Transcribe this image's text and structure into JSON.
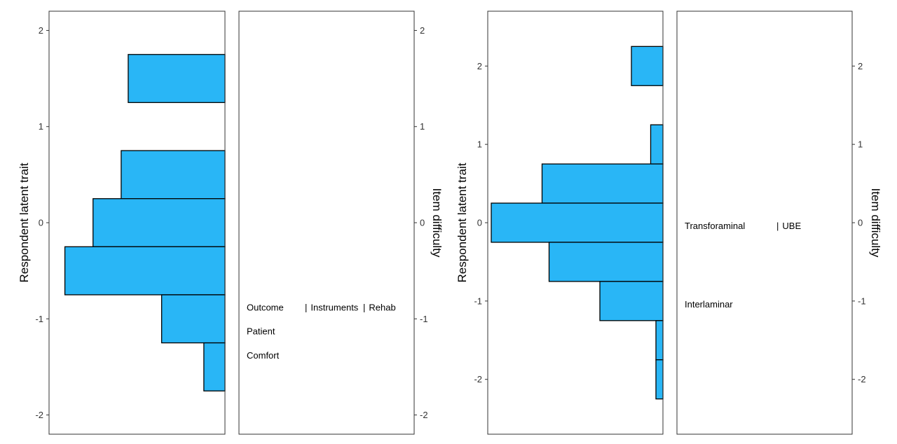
{
  "chart_data": [
    {
      "type": "bar",
      "orientation": "horizontal",
      "description_type": "wright-map",
      "ylabel_left": "Respondent latent trait",
      "ylabel_right": "Item difficulty",
      "ylim": [
        -2.2,
        2.2
      ],
      "yticks": [
        -2,
        -1,
        0,
        1,
        2
      ],
      "ytick_labels": [
        "-2",
        "-1",
        "0",
        "1",
        "2"
      ],
      "bar_color": "#29b6f6",
      "histogram_bins": [
        {
          "lower": 1.25,
          "upper": 1.75,
          "count": 0.55
        },
        {
          "lower": 0.25,
          "upper": 0.75,
          "count": 0.59
        },
        {
          "lower": -0.25,
          "upper": 0.25,
          "count": 0.75
        },
        {
          "lower": -0.75,
          "upper": -0.25,
          "count": 0.91
        },
        {
          "lower": -1.25,
          "upper": -0.75,
          "count": 0.36
        },
        {
          "lower": -1.75,
          "upper": -1.25,
          "count": 0.12
        }
      ],
      "items": [
        {
          "label": "Outcome",
          "difficulty": -0.88,
          "column": 0
        },
        {
          "label": "Patient",
          "difficulty": -1.13,
          "column": 0
        },
        {
          "label": "Comfort",
          "difficulty": -1.38,
          "column": 0
        },
        {
          "label": "Instruments",
          "difficulty": -0.88,
          "column": 1,
          "marker": "|"
        },
        {
          "label": "Rehab",
          "difficulty": -0.88,
          "column": 2,
          "marker": "|"
        }
      ]
    },
    {
      "type": "bar",
      "orientation": "horizontal",
      "description_type": "wright-map",
      "ylabel_left": "Respondent latent trait",
      "ylabel_right": "Item difficulty",
      "ylim": [
        -2.7,
        2.7
      ],
      "yticks": [
        -2,
        -1,
        0,
        1,
        2
      ],
      "ytick_labels": [
        "-2",
        "-1",
        "0",
        "1",
        "2"
      ],
      "bar_color": "#29b6f6",
      "histogram_bins": [
        {
          "lower": 1.75,
          "upper": 2.25,
          "count": 0.18
        },
        {
          "lower": 0.75,
          "upper": 1.25,
          "count": 0.07
        },
        {
          "lower": 0.25,
          "upper": 0.75,
          "count": 0.69
        },
        {
          "lower": -0.25,
          "upper": 0.25,
          "count": 0.98
        },
        {
          "lower": -0.75,
          "upper": -0.25,
          "count": 0.65
        },
        {
          "lower": -1.25,
          "upper": -0.75,
          "count": 0.36
        },
        {
          "lower": -1.75,
          "upper": -1.25,
          "count": 0.04
        },
        {
          "lower": -2.25,
          "upper": -1.75,
          "count": 0.04
        }
      ],
      "items": [
        {
          "label": "Transforaminal",
          "difficulty": -0.04,
          "column": 0
        },
        {
          "label": "UBE",
          "difficulty": -0.04,
          "column": 1,
          "marker": "|"
        },
        {
          "label": "Interlaminar",
          "difficulty": -1.04,
          "column": 0
        }
      ]
    }
  ]
}
